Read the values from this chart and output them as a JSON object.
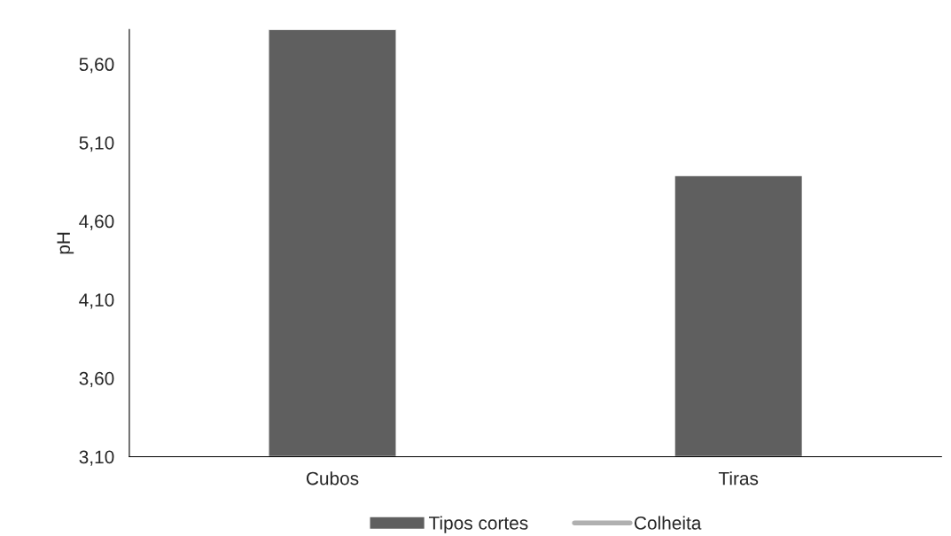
{
  "chart_data": {
    "type": "bar",
    "ylabel": "pH",
    "categories": [
      "Cubos",
      "Tiras"
    ],
    "series": [
      {
        "name": "Tipos cortes",
        "color": "#5f5f5f",
        "values": [
          5.82,
          4.89
        ]
      },
      {
        "name": "Colheita",
        "type": "line",
        "color": "#b0b0b0",
        "values": [
          null,
          null
        ]
      }
    ],
    "ylim": [
      3.1,
      5.82
    ],
    "yticks": [
      {
        "value": 3.1,
        "label": "3,10"
      },
      {
        "value": 3.6,
        "label": "3,60"
      },
      {
        "value": 4.1,
        "label": "4,10"
      },
      {
        "value": 4.6,
        "label": "4,60"
      },
      {
        "value": 5.1,
        "label": "5,10"
      },
      {
        "value": 5.6,
        "label": "5,60"
      }
    ],
    "grid": false,
    "legend": "bottom"
  }
}
